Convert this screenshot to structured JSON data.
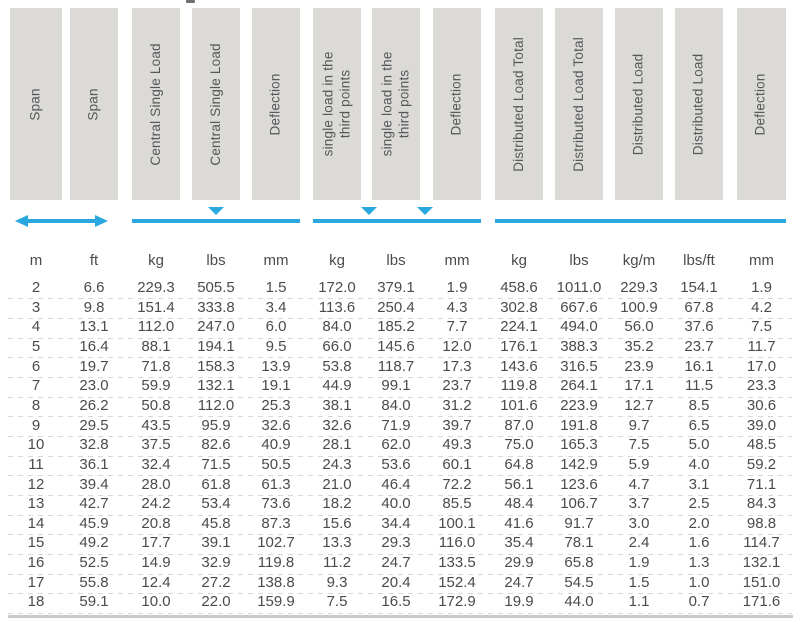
{
  "table": {
    "columns": [
      {
        "id": "span-m",
        "label": "Span",
        "unit": "m",
        "group": "span"
      },
      {
        "id": "span-ft",
        "label": "Span",
        "unit": "ft",
        "group": "span"
      },
      {
        "id": "central-single-load-kg",
        "label": "Central Single Load",
        "unit": "kg",
        "group": "central"
      },
      {
        "id": "central-single-load-lbs",
        "label": "Central Single Load",
        "unit": "lbs",
        "group": "central"
      },
      {
        "id": "central-deflection",
        "label": "Deflection",
        "unit": "mm",
        "group": "central"
      },
      {
        "id": "third-point-load-kg",
        "label": "single load in the\nthird points",
        "unit": "kg",
        "group": "third"
      },
      {
        "id": "third-point-load-lbs",
        "label": "single load in the\nthird points",
        "unit": "lbs",
        "group": "third"
      },
      {
        "id": "third-deflection",
        "label": "Deflection",
        "unit": "mm",
        "group": "third"
      },
      {
        "id": "distributed-load-total-kg",
        "label": "Distributed Load Total",
        "unit": "kg",
        "group": "distributed"
      },
      {
        "id": "distributed-load-total-lbs",
        "label": "Distributed Load Total",
        "unit": "lbs",
        "group": "distributed"
      },
      {
        "id": "distributed-load-kgm",
        "label": "Distributed Load",
        "unit": "kg/m",
        "group": "distributed"
      },
      {
        "id": "distributed-load-lbsft",
        "label": "Distributed Load",
        "unit": "lbs/ft",
        "group": "distributed"
      },
      {
        "id": "distributed-deflection",
        "label": "Deflection",
        "unit": "mm",
        "group": "distributed"
      }
    ],
    "groups": [
      {
        "name": "span",
        "glyph": "double-arrow",
        "from": 0,
        "to": 1
      },
      {
        "name": "central-single-load",
        "glyph": "line-one-point",
        "from": 2,
        "to": 4
      },
      {
        "name": "single-load-in-third-points",
        "glyph": "line-two-points",
        "from": 5,
        "to": 7
      },
      {
        "name": "distributed-load",
        "glyph": "line",
        "from": 8,
        "to": 12
      }
    ],
    "rows": [
      [
        "2",
        "6.6",
        "229.3",
        "505.5",
        "1.5",
        "172.0",
        "379.1",
        "1.9",
        "458.6",
        "1011.0",
        "229.3",
        "154.1",
        "1.9"
      ],
      [
        "3",
        "9.8",
        "151.4",
        "333.8",
        "3.4",
        "113.6",
        "250.4",
        "4.3",
        "302.8",
        "667.6",
        "100.9",
        "67.8",
        "4.2"
      ],
      [
        "4",
        "13.1",
        "112.0",
        "247.0",
        "6.0",
        "84.0",
        "185.2",
        "7.7",
        "224.1",
        "494.0",
        "56.0",
        "37.6",
        "7.5"
      ],
      [
        "5",
        "16.4",
        "88.1",
        "194.1",
        "9.5",
        "66.0",
        "145.6",
        "12.0",
        "176.1",
        "388.3",
        "35.2",
        "23.7",
        "11.7"
      ],
      [
        "6",
        "19.7",
        "71.8",
        "158.3",
        "13.9",
        "53.8",
        "118.7",
        "17.3",
        "143.6",
        "316.5",
        "23.9",
        "16.1",
        "17.0"
      ],
      [
        "7",
        "23.0",
        "59.9",
        "132.1",
        "19.1",
        "44.9",
        "99.1",
        "23.7",
        "119.8",
        "264.1",
        "17.1",
        "11.5",
        "23.3"
      ],
      [
        "8",
        "26.2",
        "50.8",
        "112.0",
        "25.3",
        "38.1",
        "84.0",
        "31.2",
        "101.6",
        "223.9",
        "12.7",
        "8.5",
        "30.6"
      ],
      [
        "9",
        "29.5",
        "43.5",
        "95.9",
        "32.6",
        "32.6",
        "71.9",
        "39.7",
        "87.0",
        "191.8",
        "9.7",
        "6.5",
        "39.0"
      ],
      [
        "10",
        "32.8",
        "37.5",
        "82.6",
        "40.9",
        "28.1",
        "62.0",
        "49.3",
        "75.0",
        "165.3",
        "7.5",
        "5.0",
        "48.5"
      ],
      [
        "11",
        "36.1",
        "32.4",
        "71.5",
        "50.5",
        "24.3",
        "53.6",
        "60.1",
        "64.8",
        "142.9",
        "5.9",
        "4.0",
        "59.2"
      ],
      [
        "12",
        "39.4",
        "28.0",
        "61.8",
        "61.3",
        "21.0",
        "46.4",
        "72.2",
        "56.1",
        "123.6",
        "4.7",
        "3.1",
        "71.1"
      ],
      [
        "13",
        "42.7",
        "24.2",
        "53.4",
        "73.6",
        "18.2",
        "40.0",
        "85.5",
        "48.4",
        "106.7",
        "3.7",
        "2.5",
        "84.3"
      ],
      [
        "14",
        "45.9",
        "20.8",
        "45.8",
        "87.3",
        "15.6",
        "34.4",
        "100.1",
        "41.6",
        "91.7",
        "3.0",
        "2.0",
        "98.8"
      ],
      [
        "15",
        "49.2",
        "17.7",
        "39.1",
        "102.7",
        "13.3",
        "29.3",
        "116.0",
        "35.4",
        "78.1",
        "2.4",
        "1.6",
        "114.7"
      ],
      [
        "16",
        "52.5",
        "14.9",
        "32.9",
        "119.8",
        "11.2",
        "24.7",
        "133.5",
        "29.9",
        "65.8",
        "1.9",
        "1.3",
        "132.1"
      ],
      [
        "17",
        "55.8",
        "12.4",
        "27.2",
        "138.8",
        "9.3",
        "20.4",
        "152.4",
        "24.7",
        "54.5",
        "1.5",
        "1.0",
        "151.0"
      ],
      [
        "18",
        "59.1",
        "10.0",
        "22.0",
        "159.9",
        "7.5",
        "16.5",
        "172.9",
        "19.9",
        "44.0",
        "1.1",
        "0.7",
        "171.6"
      ]
    ]
  },
  "colors": {
    "accent": "#29A8E0",
    "header_box": "#DBDAD7",
    "text": "#4A4B4D",
    "header_text": "#565759",
    "grid": "#D8D8D8",
    "rule": "#C9C9C9"
  }
}
